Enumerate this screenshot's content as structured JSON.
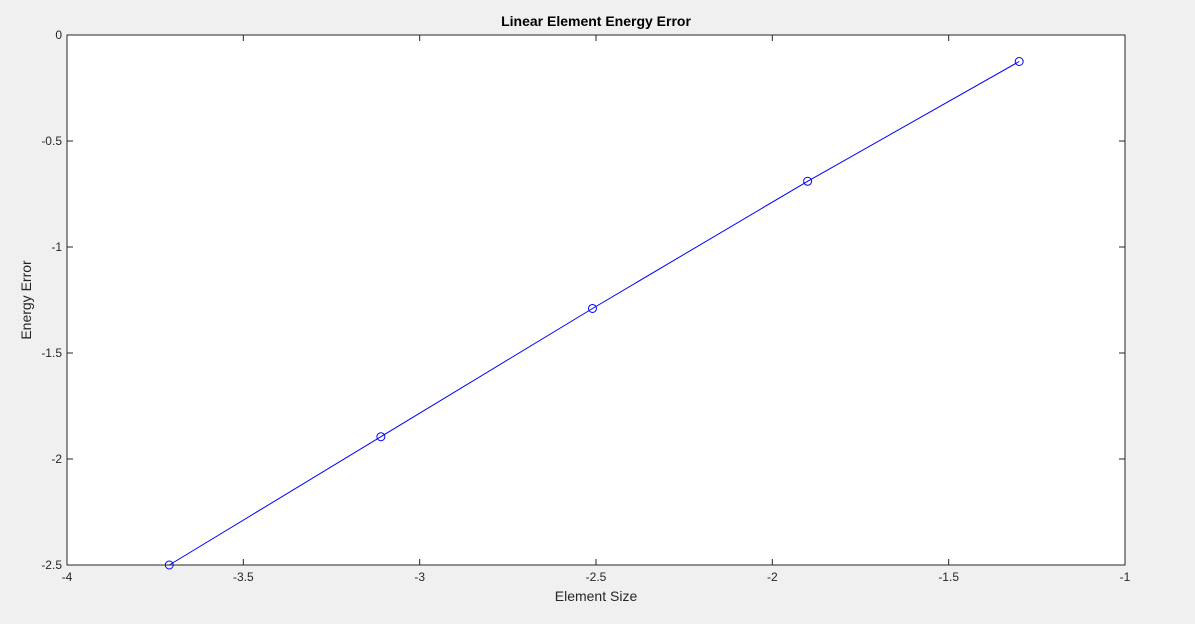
{
  "chart_data": {
    "type": "line",
    "title": "Linear Element Energy Error",
    "xlabel": "Element Size",
    "ylabel": "Energy Error",
    "xlim": [
      -4,
      -1
    ],
    "ylim": [
      -2.5,
      0
    ],
    "xticks": [
      -4,
      -3.5,
      -3,
      -2.5,
      -2,
      -1.5,
      -1
    ],
    "xtick_labels": [
      "-4",
      "-3.5",
      "-3",
      "-2.5",
      "-2",
      "-1.5",
      "-1"
    ],
    "yticks": [
      0,
      -0.5,
      -1,
      -1.5,
      -2,
      -2.5
    ],
    "ytick_labels": [
      "0",
      "-0.5",
      "-1",
      "-1.5",
      "-2",
      "-2.5"
    ],
    "grid": false,
    "series": [
      {
        "marker": "circle",
        "color": "#0000ff",
        "x": [
          -3.71,
          -3.11,
          -2.51,
          -1.9,
          -1.3
        ],
        "y": [
          -2.5,
          -1.895,
          -1.29,
          -0.69,
          -0.125
        ]
      }
    ],
    "colors": {
      "figure_background": "#f0f0f0",
      "axes_background": "#ffffff",
      "axes_edge": "#262626",
      "line": "#0000ff"
    }
  }
}
